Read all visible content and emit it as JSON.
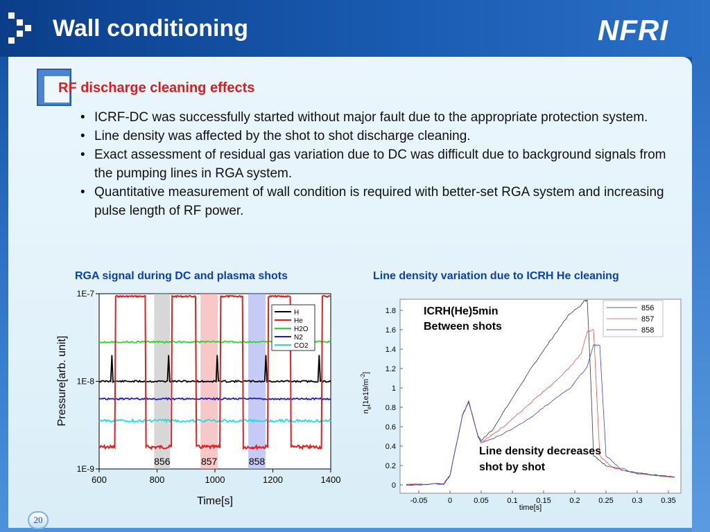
{
  "slide": {
    "title": "Wall conditioning",
    "logo_text": "NFRI",
    "page_number": "20",
    "colors": {
      "header": "#1a5db4",
      "heading": "#e3191b",
      "chart_titles": "#0a3fb4"
    }
  },
  "section": {
    "heading": "RF discharge cleaning effects",
    "bullets": [
      "ICRF-DC was successfully started without major fault due to the appropriate protection system.",
      "Line density was affected by the shot to shot discharge cleaning.",
      "Exact assessment of residual gas variation due to DC was difficult due to background signals from the pumping lines in RGA system.",
      "Quantitative measurement of wall condition is required with better-set RGA system and increasing pulse length of RF power."
    ]
  },
  "chart_data": [
    {
      "type": "line",
      "title": "RGA signal during DC and plasma shots",
      "xlabel": "Time[s]",
      "ylabel": "Pressure[arb. unit]",
      "xlim": [
        600,
        1400
      ],
      "ylim_log": [
        -9,
        -7
      ],
      "x_ticks": [
        "600",
        "800",
        "1000",
        "1200",
        "1400"
      ],
      "y_ticks": [
        "1E-7",
        "1E-8",
        "1E-9"
      ],
      "legend_position": "top-right",
      "series": [
        {
          "name": "H",
          "color": "#000000",
          "level_log": -8.0,
          "spike_log": -7.7
        },
        {
          "name": "He",
          "color": "#e81a1a",
          "low_log": -8.75,
          "high_log": -7.03
        },
        {
          "name": "H2O",
          "color": "#22dd22",
          "level_log": -7.55
        },
        {
          "name": "N2",
          "color": "#1a1acc",
          "level_log": -8.2
        },
        {
          "name": "CO2",
          "color": "#22dddd",
          "level_log": -8.45
        }
      ],
      "he_pulses": [
        [
          655,
          760
        ],
        [
          850,
          935
        ],
        [
          1020,
          1095
        ],
        [
          1185,
          1260
        ],
        [
          1370,
          1400
        ]
      ],
      "shot_bands": [
        {
          "label": "856",
          "x": [
            790,
            845
          ],
          "color": "#bdbdbd"
        },
        {
          "label": "857",
          "x": [
            950,
            1010
          ],
          "color": "#f4a4a4"
        },
        {
          "label": "858",
          "x": [
            1115,
            1175
          ],
          "color": "#a0a8f0"
        }
      ]
    },
    {
      "type": "line",
      "title": "Line density variation due to ICRH He cleaning",
      "xlabel": "time[s]",
      "ylabel": "n_e[1e19/m^-2]",
      "ylabel_parts": [
        "n",
        "e",
        "[1e19/m",
        "-2",
        "]"
      ],
      "xlim": [
        -0.08,
        0.37
      ],
      "ylim": [
        0,
        1.9
      ],
      "x_ticks": [
        "-0.05",
        "0",
        "0.05",
        "0.1",
        "0.15",
        "0.2",
        "0.25",
        "0.3",
        "0.35"
      ],
      "y_ticks": [
        "0",
        "0.2",
        "0.4",
        "0.6",
        "0.8",
        "1",
        "1.2",
        "1.4",
        "1.6",
        "1.8"
      ],
      "legend_position": "top-right",
      "annotations": [
        "ICRH(He)5min",
        "Between shots",
        "Line density decreases",
        "shot by shot"
      ],
      "series": [
        {
          "name": "856",
          "color": "#333333",
          "x": [
            -0.07,
            -0.01,
            0.0,
            0.02,
            0.03,
            0.045,
            0.05,
            0.07,
            0.1,
            0.13,
            0.16,
            0.19,
            0.21,
            0.215,
            0.22,
            0.225,
            0.23,
            0.25,
            0.3,
            0.36
          ],
          "y": [
            0.0,
            0.01,
            0.1,
            0.72,
            0.86,
            0.5,
            0.46,
            0.58,
            0.9,
            1.2,
            1.48,
            1.75,
            1.85,
            1.9,
            1.9,
            1.18,
            0.3,
            0.2,
            0.12,
            0.08
          ]
        },
        {
          "name": "857",
          "color": "#e84a4a",
          "x": [
            -0.07,
            -0.01,
            0.0,
            0.02,
            0.03,
            0.045,
            0.05,
            0.07,
            0.1,
            0.13,
            0.16,
            0.19,
            0.21,
            0.22,
            0.23,
            0.24,
            0.26,
            0.3,
            0.36
          ],
          "y": [
            0.0,
            0.01,
            0.1,
            0.72,
            0.86,
            0.5,
            0.44,
            0.52,
            0.68,
            0.85,
            1.02,
            1.2,
            1.35,
            1.58,
            1.6,
            0.3,
            0.18,
            0.12,
            0.08
          ]
        },
        {
          "name": "858",
          "color": "#3a3ae0",
          "x": [
            -0.07,
            -0.01,
            0.0,
            0.02,
            0.03,
            0.045,
            0.05,
            0.07,
            0.1,
            0.13,
            0.16,
            0.19,
            0.22,
            0.23,
            0.24,
            0.25,
            0.27,
            0.3,
            0.36
          ],
          "y": [
            0.0,
            0.01,
            0.1,
            0.72,
            0.86,
            0.5,
            0.44,
            0.48,
            0.58,
            0.7,
            0.85,
            0.98,
            1.22,
            1.44,
            1.44,
            0.3,
            0.18,
            0.12,
            0.08
          ]
        }
      ]
    }
  ]
}
